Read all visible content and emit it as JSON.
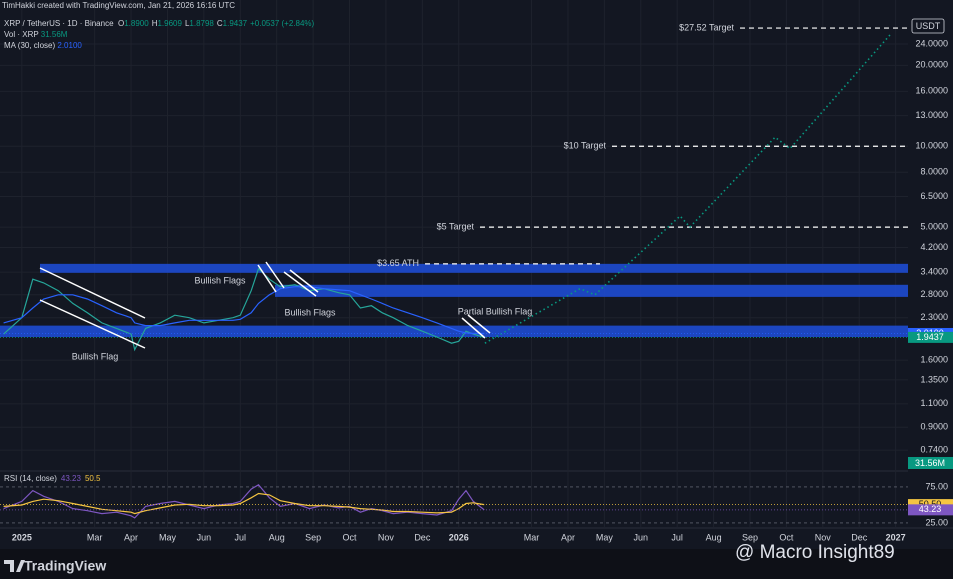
{
  "header": {
    "credit": "TimHakki created with TradingView.com, Jan 21, 2026 16:16 UTC",
    "symbol": "XRP / TetherUS · 1D · Binance",
    "ohlc": [
      {
        "label": "O",
        "value": "1.8900"
      },
      {
        "label": "H",
        "value": "1.9609"
      },
      {
        "label": "L",
        "value": "1.8798"
      },
      {
        "label": "C",
        "value": "1.9437"
      },
      {
        "label": "+0.0537 (+2.84%)",
        "value": ""
      }
    ],
    "volume_label": "Vol · XRP",
    "volume_value": "31.56M",
    "ma_label": "MA (30, close)",
    "ma_value": "2.0100",
    "currency": "USDT"
  },
  "footer": {
    "brand": "TradingView",
    "watermark": "@ Macro Insight89"
  },
  "chart_data": [
    {
      "type": "line",
      "log_scale": true,
      "xlim": [
        -0.6,
        24.34
      ],
      "ylim": [
        0.624,
        35
      ],
      "xticks": [
        {
          "value": 0,
          "label": "2025"
        },
        {
          "value": 2,
          "label": "Mar"
        },
        {
          "value": 3,
          "label": "Apr"
        },
        {
          "value": 4,
          "label": "May"
        },
        {
          "value": 5,
          "label": "Jun"
        },
        {
          "value": 6,
          "label": "Jul"
        },
        {
          "value": 7,
          "label": "Aug"
        },
        {
          "value": 8,
          "label": "Sep"
        },
        {
          "value": 9,
          "label": "Oct"
        },
        {
          "value": 10,
          "label": "Nov"
        },
        {
          "value": 11,
          "label": "Dec"
        },
        {
          "value": 12,
          "label": "2026"
        },
        {
          "value": 14,
          "label": "Mar"
        },
        {
          "value": 15,
          "label": "Apr"
        },
        {
          "value": 16,
          "label": "May"
        },
        {
          "value": 17,
          "label": "Jun"
        },
        {
          "value": 18,
          "label": "Jul"
        },
        {
          "value": 19,
          "label": "Aug"
        },
        {
          "value": 20,
          "label": "Sep"
        },
        {
          "value": 21,
          "label": "Oct"
        },
        {
          "value": 22,
          "label": "Nov"
        },
        {
          "value": 23,
          "label": "Dec"
        },
        {
          "value": 24,
          "label": "2027"
        }
      ],
      "yticks": [
        {
          "value": 24,
          "label": "24.0000"
        },
        {
          "value": 20,
          "label": "20.0000"
        },
        {
          "value": 16,
          "label": "16.0000"
        },
        {
          "value": 13,
          "label": "13.0000"
        },
        {
          "value": 10,
          "label": "10.0000"
        },
        {
          "value": 8,
          "label": "8.0000"
        },
        {
          "value": 6.5,
          "label": "6.5000"
        },
        {
          "value": 5,
          "label": "5.0000"
        },
        {
          "value": 4.2,
          "label": "4.2000"
        },
        {
          "value": 3.4,
          "label": "3.4000"
        },
        {
          "value": 2.8,
          "label": "2.8000"
        },
        {
          "value": 2.3,
          "label": "2.3000"
        },
        {
          "value": 1.6,
          "label": "1.6000"
        },
        {
          "value": 1.35,
          "label": "1.3500"
        },
        {
          "value": 1.1,
          "label": "1.1000"
        },
        {
          "value": 0.9,
          "label": "0.9000"
        },
        {
          "value": 0.74,
          "label": "0.7400"
        }
      ],
      "grid": true,
      "series": [
        {
          "color": "#26a69a",
          "style": "solid",
          "x": [
            -0.5,
            0,
            0.3,
            0.6,
            1.0,
            1.4,
            1.8,
            2.2,
            2.6,
            3.0,
            3.1,
            3.4,
            3.8,
            4.2,
            4.6,
            5.0,
            5.4,
            5.8,
            6.0,
            6.3,
            6.5,
            6.8,
            7.1,
            7.5,
            7.9,
            8.3,
            8.7,
            9.0,
            9.3,
            9.6,
            9.9,
            10.2,
            10.6,
            11.0,
            11.4,
            11.8,
            12.0,
            12.2,
            12.4,
            12.7
          ],
          "values": [
            2.0,
            2.3,
            3.2,
            3.1,
            2.9,
            2.6,
            2.4,
            2.2,
            2.1,
            2.0,
            1.75,
            2.1,
            2.2,
            2.35,
            2.3,
            2.2,
            2.25,
            2.3,
            2.35,
            2.9,
            3.5,
            3.2,
            3.0,
            3.05,
            2.9,
            2.95,
            2.85,
            2.8,
            2.5,
            2.55,
            2.4,
            2.3,
            2.15,
            2.05,
            1.95,
            1.85,
            1.88,
            2.05,
            2.0,
            1.9437
          ]
        },
        {
          "color": "#2962ff",
          "style": "solid",
          "x": [
            -0.5,
            0,
            0.3,
            0.6,
            1.0,
            1.4,
            1.8,
            2.2,
            2.6,
            3.0,
            3.1,
            3.4,
            3.8,
            4.2,
            4.6,
            5.0,
            5.4,
            5.8,
            6.0,
            6.3,
            6.5,
            6.8,
            7.1,
            7.5,
            7.9,
            8.3,
            8.7,
            9.0,
            9.3,
            9.6,
            9.9,
            10.2,
            10.6,
            11.0,
            11.4,
            11.8,
            12.0,
            12.2,
            12.4,
            12.7
          ],
          "values": [
            2.2,
            2.3,
            2.5,
            2.7,
            2.8,
            2.8,
            2.7,
            2.55,
            2.4,
            2.3,
            2.2,
            2.15,
            2.15,
            2.2,
            2.25,
            2.25,
            2.25,
            2.25,
            2.27,
            2.4,
            2.6,
            2.8,
            2.95,
            3.0,
            3.0,
            2.95,
            2.92,
            2.9,
            2.8,
            2.7,
            2.6,
            2.5,
            2.4,
            2.3,
            2.2,
            2.1,
            2.05,
            2.02,
            2.01,
            2.01
          ]
        },
        {
          "color": "#089981",
          "style": "dotted",
          "x": [
            12.72,
            15.33,
            15.74,
            18.08,
            18.35,
            20.69,
            21.1,
            23.85
          ],
          "values": [
            1.85,
            2.95,
            2.8,
            5.5,
            5.0,
            10.8,
            9.8,
            26
          ]
        }
      ],
      "zones": [
        {
          "from": 3.38,
          "to": 3.65,
          "color": "#1e4bd2"
        },
        {
          "from": 2.75,
          "to": 3.05,
          "color": "#1e4bd2"
        },
        {
          "from": 1.95,
          "to": 2.15,
          "color": "#1e4bd2"
        }
      ],
      "levels": [
        {
          "text": "$27.52 Target",
          "value": 27.52
        },
        {
          "text": "$10 Target",
          "value": 10
        },
        {
          "text": "$5 Target",
          "value": 5
        },
        {
          "text": "$3.65 ATH",
          "value": 3.65
        }
      ],
      "annotations": [
        "Bullish Flag",
        "Bullish Flags",
        "Bullish Flags",
        "Partial Bullish Flag"
      ],
      "price_badges": [
        {
          "value": 2.01,
          "label": "2.0100",
          "color": "#2962ff"
        },
        {
          "value": 1.9437,
          "label": "1.9437",
          "color": "#089981"
        }
      ]
    },
    {
      "type": "line",
      "log_scale": false,
      "title": "RSI (14, close)",
      "xlim": [
        -0.6,
        24.34
      ],
      "ylim": [
        19.4,
        95.8
      ],
      "yticks": [
        {
          "value": 75,
          "label": "75.00"
        },
        {
          "value": 25,
          "label": "25.00"
        }
      ],
      "series": [
        {
          "color": "#7e57c2",
          "style": "solid",
          "x": [
            -0.5,
            0,
            0.3,
            0.6,
            1.0,
            1.4,
            1.8,
            2.2,
            2.6,
            3.0,
            3.1,
            3.4,
            3.8,
            4.2,
            4.6,
            5.0,
            5.4,
            5.8,
            6.0,
            6.3,
            6.5,
            6.8,
            7.1,
            7.5,
            7.9,
            8.3,
            8.7,
            9.0,
            9.3,
            9.6,
            9.9,
            10.2,
            10.6,
            11.0,
            11.4,
            11.8,
            12.0,
            12.2,
            12.4,
            12.7
          ],
          "values": [
            45,
            55,
            70,
            62,
            55,
            45,
            42,
            38,
            40,
            35,
            32,
            48,
            52,
            55,
            50,
            45,
            50,
            52,
            55,
            72,
            78,
            60,
            48,
            52,
            45,
            50,
            46,
            48,
            40,
            45,
            42,
            38,
            40,
            38,
            36,
            42,
            58,
            70,
            55,
            43.23
          ]
        },
        {
          "color": "#f5c542",
          "style": "solid",
          "x": [
            -0.5,
            0,
            0.3,
            0.6,
            1.0,
            1.4,
            1.8,
            2.2,
            2.6,
            3.0,
            3.1,
            3.4,
            3.8,
            4.2,
            4.6,
            5.0,
            5.4,
            5.8,
            6.0,
            6.3,
            6.5,
            6.8,
            7.1,
            7.5,
            7.9,
            8.3,
            8.7,
            9.0,
            9.3,
            9.6,
            9.9,
            10.2,
            10.6,
            11.0,
            11.4,
            11.8,
            12.0,
            12.2,
            12.4,
            12.7
          ],
          "values": [
            48,
            50,
            55,
            58,
            56,
            52,
            48,
            44,
            42,
            40,
            38,
            42,
            46,
            50,
            51,
            49,
            49,
            50,
            52,
            60,
            66,
            64,
            56,
            52,
            49,
            49,
            48,
            47,
            45,
            44,
            43,
            41,
            41,
            40,
            39,
            40,
            45,
            52,
            53,
            50.5
          ]
        }
      ],
      "price_badges": [
        {
          "value": 50.5,
          "label": "50.50",
          "color": "#f5c542"
        },
        {
          "value": 43.23,
          "label": "43.23",
          "color": "#7e57c2"
        }
      ]
    }
  ]
}
